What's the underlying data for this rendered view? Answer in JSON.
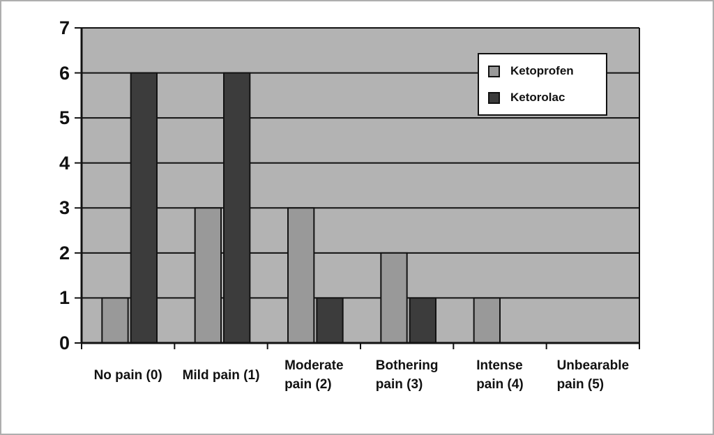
{
  "figure": {
    "background": "#ffffff",
    "border_color": "#aeaeae"
  },
  "chart_data": {
    "type": "bar",
    "title": "",
    "xlabel": "",
    "ylabel": "",
    "categories": [
      "No pain (0)",
      "Mild pain (1)",
      "Moderate pain (2)",
      "Bothering pain (3)",
      "Intense pain (4)",
      "Unbearable pain (5)"
    ],
    "category_label_lines": [
      [
        "No pain (0)"
      ],
      [
        "Mild pain (1)"
      ],
      [
        "Moderate",
        "pain (2)"
      ],
      [
        "Bothering",
        "pain (3)"
      ],
      [
        "Intense",
        "pain (4)"
      ],
      [
        "Unbearable",
        "pain (5)"
      ]
    ],
    "series": [
      {
        "name": "Ketoprofen",
        "color": "#999999",
        "values": [
          1,
          3,
          3,
          2,
          1,
          0
        ]
      },
      {
        "name": "Ketorolac",
        "color": "#3c3c3c",
        "values": [
          6,
          6,
          1,
          1,
          0,
          0
        ]
      }
    ],
    "ylim": [
      0,
      7
    ],
    "yticks": [
      0,
      1,
      2,
      3,
      4,
      5,
      6,
      7
    ],
    "grid": true,
    "plot_background": "#b3b3b3",
    "line_color": "#121212",
    "legend": {
      "position": "top-right",
      "background": "#ffffff",
      "border": "#121212"
    }
  }
}
